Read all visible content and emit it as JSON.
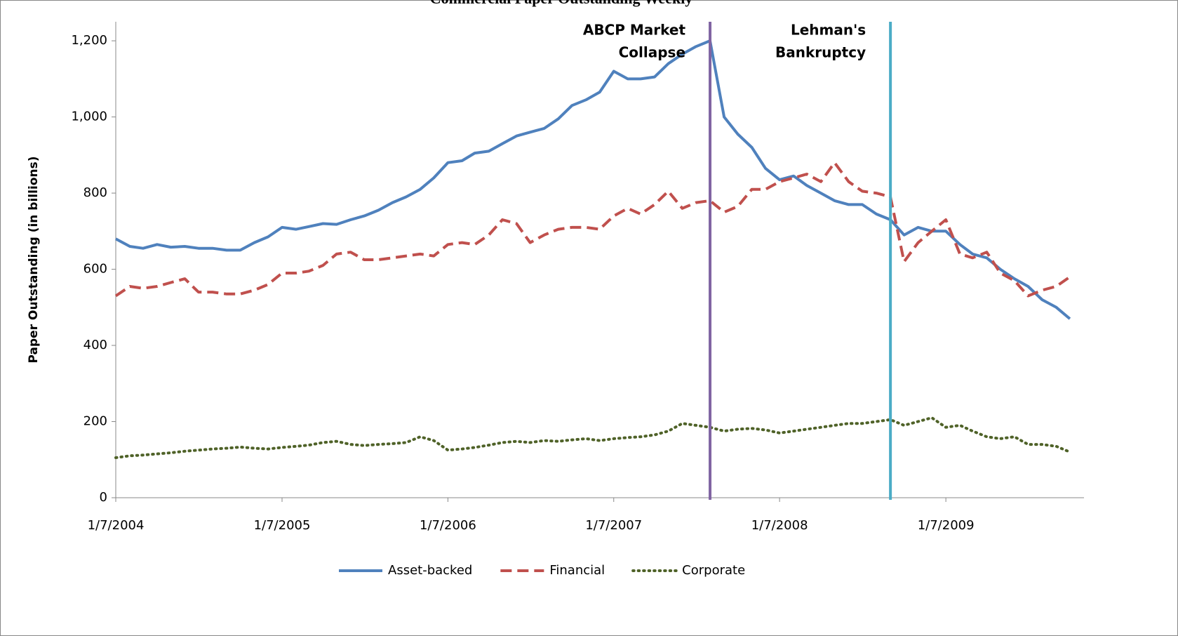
{
  "chart_data": {
    "type": "line",
    "title": "Commercial Paper Outstanding Weekly",
    "y_label": "Paper Outstanding (in billions)",
    "x": [
      "2004-01",
      "2004-02",
      "2004-03",
      "2004-04",
      "2004-05",
      "2004-06",
      "2004-07",
      "2004-08",
      "2004-09",
      "2004-10",
      "2004-11",
      "2004-12",
      "2005-01",
      "2005-02",
      "2005-03",
      "2005-04",
      "2005-05",
      "2005-06",
      "2005-07",
      "2005-08",
      "2005-09",
      "2005-10",
      "2005-11",
      "2005-12",
      "2006-01",
      "2006-02",
      "2006-03",
      "2006-04",
      "2006-05",
      "2006-06",
      "2006-07",
      "2006-08",
      "2006-09",
      "2006-10",
      "2006-11",
      "2006-12",
      "2007-01",
      "2007-02",
      "2007-03",
      "2007-04",
      "2007-05",
      "2007-06",
      "2007-07",
      "2007-08",
      "2007-09",
      "2007-10",
      "2007-11",
      "2007-12",
      "2008-01",
      "2008-02",
      "2008-03",
      "2008-04",
      "2008-05",
      "2008-06",
      "2008-07",
      "2008-08",
      "2008-09",
      "2008-10",
      "2008-11",
      "2008-12",
      "2009-01",
      "2009-02",
      "2009-03",
      "2009-04",
      "2009-05",
      "2009-06",
      "2009-07",
      "2009-08",
      "2009-09",
      "2009-10"
    ],
    "series": [
      {
        "name": "Asset-backed",
        "color": "#4f81bd",
        "style": "solid",
        "values": [
          680,
          660,
          655,
          665,
          658,
          660,
          655,
          655,
          650,
          650,
          670,
          685,
          710,
          705,
          712,
          720,
          718,
          730,
          740,
          755,
          775,
          790,
          810,
          840,
          880,
          885,
          905,
          910,
          930,
          950,
          960,
          970,
          995,
          1030,
          1045,
          1065,
          1120,
          1100,
          1100,
          1105,
          1140,
          1165,
          1185,
          1200,
          1000,
          955,
          920,
          865,
          835,
          845,
          820,
          800,
          780,
          770,
          770,
          745,
          730,
          690,
          710,
          700,
          700,
          665,
          640,
          630,
          600,
          575,
          555,
          520,
          500,
          470
        ]
      },
      {
        "name": "Financial",
        "color": "#c0504d",
        "style": "dashed",
        "values": [
          530,
          555,
          550,
          555,
          565,
          575,
          540,
          540,
          535,
          535,
          545,
          560,
          590,
          590,
          595,
          610,
          640,
          645,
          625,
          625,
          630,
          635,
          640,
          635,
          665,
          670,
          665,
          690,
          730,
          720,
          670,
          690,
          705,
          710,
          710,
          705,
          740,
          760,
          745,
          770,
          805,
          760,
          775,
          780,
          750,
          765,
          810,
          810,
          830,
          840,
          850,
          830,
          880,
          830,
          805,
          800,
          790,
          620,
          670,
          700,
          730,
          640,
          630,
          645,
          590,
          570,
          530,
          545,
          555,
          580
        ]
      },
      {
        "name": "Corporate",
        "color": "#4f6228",
        "style": "dotted",
        "values": [
          105,
          110,
          112,
          115,
          118,
          122,
          125,
          128,
          130,
          133,
          130,
          128,
          132,
          135,
          138,
          145,
          148,
          140,
          137,
          140,
          142,
          145,
          160,
          150,
          125,
          128,
          132,
          138,
          145,
          148,
          145,
          150,
          148,
          152,
          155,
          150,
          155,
          158,
          160,
          165,
          175,
          195,
          190,
          185,
          175,
          180,
          182,
          178,
          170,
          175,
          180,
          185,
          190,
          195,
          195,
          200,
          205,
          190,
          200,
          210,
          185,
          190,
          175,
          160,
          155,
          160,
          140,
          140,
          135,
          120
        ]
      }
    ],
    "annotations": [
      {
        "text": [
          "ABCP Market",
          "Collapse"
        ],
        "x": "2007-08",
        "color": "#8064a2"
      },
      {
        "text": [
          "Lehman's",
          "Bankruptcy"
        ],
        "x": "2008-09",
        "color": "#4bacc6"
      }
    ],
    "xlim": [
      "2004-01",
      "2009-11"
    ],
    "xticks": [
      "1/7/2004",
      "1/7/2005",
      "1/7/2006",
      "1/7/2007",
      "1/7/2008",
      "1/7/2009"
    ],
    "ylim": [
      0,
      1250
    ],
    "yticks": [
      0,
      200,
      400,
      600,
      800,
      {
        "value": 1000,
        "label": "1,000"
      },
      {
        "value": 1200,
        "label": "1,200"
      }
    ],
    "legend": "bottom"
  }
}
